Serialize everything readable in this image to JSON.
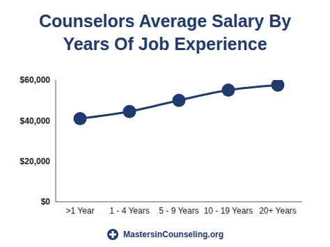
{
  "chart_data": {
    "type": "line",
    "title": "Counselors Average Salary By Years Of Job Experience",
    "categories": [
      ">1 Year",
      "1 - 4 Years",
      "5 - 9 Years",
      "10 - 19 Years",
      "20+ Years"
    ],
    "values": [
      41000,
      44500,
      50000,
      55000,
      57500
    ],
    "color": "#1f3a6e",
    "marker": "circle",
    "ylim": [
      0,
      60000
    ],
    "yticks": [
      {
        "value": 0,
        "label": "$0"
      },
      {
        "value": 20000,
        "label": "$20,000"
      },
      {
        "value": 40000,
        "label": "$40,000"
      },
      {
        "value": 60000,
        "label": "$60,000"
      }
    ],
    "grid": false,
    "annotations": [
      "MastersinCounseling.org"
    ]
  }
}
